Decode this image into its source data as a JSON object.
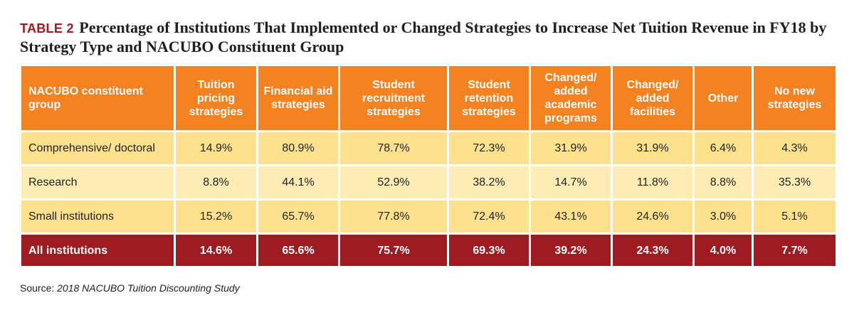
{
  "title": {
    "label": "TABLE 2",
    "text": "Percentage of Institutions That Implemented or Changed Strategies to Increase Net Tuition Revenue in FY18 by Strategy Type and NACUBO Constituent Group"
  },
  "colors": {
    "header": "#f58220",
    "row_light": "#fde18c",
    "row_lighter": "#fdecb4",
    "total_row": "#9e1b21",
    "title_label": "#9e1b21"
  },
  "chart_data": {
    "type": "table",
    "columns": [
      "NACUBO constituent group",
      "Tuition pricing strategies",
      "Financial aid strategies",
      "Student recruitment strategies",
      "Student retention strategies",
      "Changed/ added academic programs",
      "Changed/ added facilities",
      "Other",
      "No new strategies"
    ],
    "rows": [
      [
        "Comprehensive/ doctoral",
        "14.9%",
        "80.9%",
        "78.7%",
        "72.3%",
        "31.9%",
        "31.9%",
        "6.4%",
        "4.3%"
      ],
      [
        "Research",
        "8.8%",
        "44.1%",
        "52.9%",
        "38.2%",
        "14.7%",
        "11.8%",
        "8.8%",
        "35.3%"
      ],
      [
        "Small institutions",
        "15.2%",
        "65.7%",
        "77.8%",
        "72.4%",
        "43.1%",
        "24.6%",
        "3.0%",
        "5.1%"
      ],
      [
        "All institutions",
        "14.6%",
        "65.6%",
        "75.7%",
        "69.3%",
        "39.2%",
        "24.3%",
        "4.0%",
        "7.7%"
      ]
    ]
  },
  "source": {
    "prefix": "Source: ",
    "text": "2018 NACUBO Tuition Discounting Study"
  }
}
